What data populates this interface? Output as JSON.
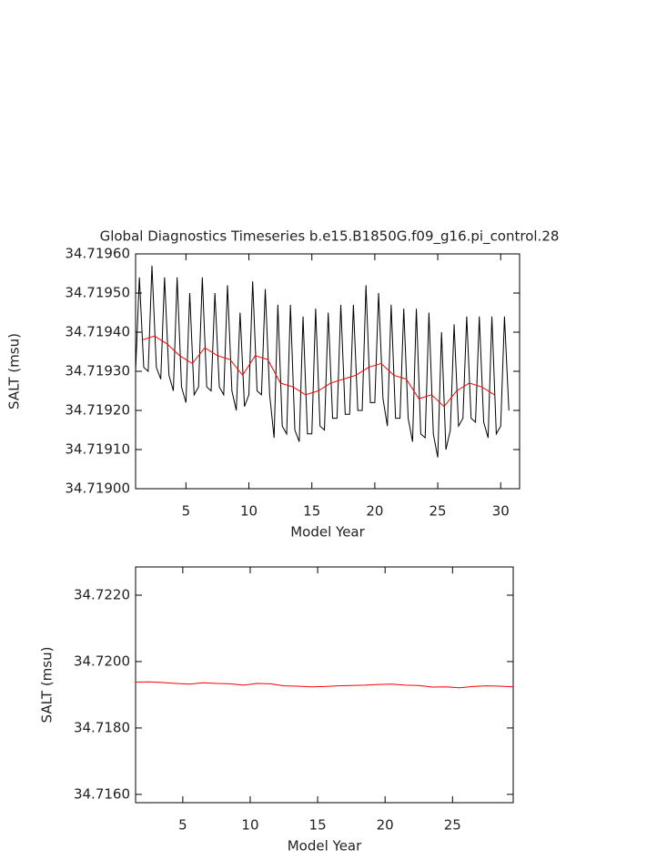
{
  "chart_data": [
    {
      "type": "line",
      "title": "Global Diagnostics Timeseries b.e15.B1850G.f09_g16.pi_control.28",
      "x_label": "Model Year",
      "y_label": "SALT (msu)",
      "xlim": [
        1,
        31.5
      ],
      "ylim": [
        34.719,
        34.7196
      ],
      "xticks": [
        5,
        10,
        15,
        20,
        25,
        30
      ],
      "yticks": [
        {
          "value": 34.719,
          "label": "34.71900"
        },
        {
          "value": 34.7191,
          "label": "34.71910"
        },
        {
          "value": 34.7192,
          "label": "34.71920"
        },
        {
          "value": 34.7193,
          "label": "34.71930"
        },
        {
          "value": 34.7194,
          "label": "34.71940"
        },
        {
          "value": 34.7195,
          "label": "34.71950"
        },
        {
          "value": 34.7196,
          "label": "34.71960"
        }
      ],
      "series": [
        {
          "color": "#000000",
          "x": [
            1,
            1.3,
            1.65,
            2,
            2.3,
            2.65,
            3,
            3.3,
            3.65,
            4,
            4.3,
            4.65,
            5,
            5.3,
            5.65,
            6,
            6.3,
            6.65,
            7,
            7.3,
            7.65,
            8,
            8.3,
            8.65,
            9,
            9.3,
            9.65,
            10,
            10.3,
            10.65,
            11,
            11.3,
            11.65,
            12,
            12.3,
            12.65,
            13,
            13.3,
            13.65,
            14,
            14.3,
            14.65,
            15,
            15.3,
            15.65,
            16,
            16.3,
            16.65,
            17,
            17.3,
            17.65,
            18,
            18.3,
            18.65,
            19,
            19.3,
            19.65,
            20,
            20.3,
            20.65,
            21,
            21.3,
            21.65,
            22,
            22.3,
            22.65,
            23,
            23.3,
            23.65,
            24,
            24.3,
            24.65,
            25,
            25.3,
            25.65,
            26,
            26.3,
            26.65,
            27,
            27.3,
            27.65,
            28,
            28.3,
            28.65,
            29,
            29.3,
            29.65,
            30,
            30.3,
            30.65
          ],
          "values": [
            34.7193,
            34.71954,
            34.71931,
            34.7193,
            34.71957,
            34.71931,
            34.71928,
            34.71954,
            34.71929,
            34.71925,
            34.71954,
            34.71926,
            34.71922,
            34.7195,
            34.71924,
            34.71926,
            34.71954,
            34.71926,
            34.71925,
            34.7195,
            34.71926,
            34.71924,
            34.71952,
            34.71925,
            34.7192,
            34.71945,
            34.71921,
            34.71924,
            34.71953,
            34.71925,
            34.71924,
            34.71951,
            34.71924,
            34.71913,
            34.71947,
            34.71916,
            34.71914,
            34.71947,
            34.71915,
            34.71912,
            34.71944,
            34.71914,
            34.71914,
            34.71946,
            34.71916,
            34.71915,
            34.71945,
            34.71918,
            34.71918,
            34.71947,
            34.71919,
            34.71919,
            34.71947,
            34.7192,
            34.7192,
            34.71952,
            34.71922,
            34.71922,
            34.7195,
            34.71923,
            34.71916,
            34.71947,
            34.71918,
            34.71918,
            34.71946,
            34.71918,
            34.71912,
            34.71946,
            34.71914,
            34.71913,
            34.71945,
            34.71914,
            34.71908,
            34.7194,
            34.7191,
            34.71915,
            34.71942,
            34.71916,
            34.71918,
            34.71944,
            34.71918,
            34.71917,
            34.71944,
            34.71917,
            34.71913,
            34.71944,
            34.71914,
            34.71916,
            34.71944,
            34.7192
          ]
        },
        {
          "color": "#ff0000",
          "x": [
            1.5,
            2.5,
            3.5,
            4.5,
            5.5,
            6.5,
            7.5,
            8.5,
            9.5,
            10.5,
            11.5,
            12.5,
            13.5,
            14.5,
            15.5,
            16.5,
            17.5,
            18.5,
            19.5,
            20.5,
            21.5,
            22.5,
            23.5,
            24.5,
            25.5,
            26.5,
            27.5,
            28.5,
            29.5
          ],
          "values": [
            34.71938,
            34.71939,
            34.71937,
            34.71934,
            34.71932,
            34.71936,
            34.71934,
            34.71933,
            34.71929,
            34.71934,
            34.71933,
            34.71927,
            34.71926,
            34.71924,
            34.71925,
            34.71927,
            34.71928,
            34.71929,
            34.71931,
            34.71932,
            34.71929,
            34.71928,
            34.71923,
            34.71924,
            34.71921,
            34.71925,
            34.71927,
            34.71926,
            34.71924
          ]
        }
      ]
    },
    {
      "type": "line",
      "x_label": "Model Year",
      "y_label": "SALT (msu)",
      "xlim": [
        1.5,
        29.5
      ],
      "ylim": [
        34.71575,
        34.72285
      ],
      "xticks": [
        5,
        10,
        15,
        20,
        25
      ],
      "yticks": [
        {
          "value": 34.716,
          "label": "34.7160"
        },
        {
          "value": 34.718,
          "label": "34.7180"
        },
        {
          "value": 34.72,
          "label": "34.7200"
        },
        {
          "value": 34.722,
          "label": "34.7220"
        }
      ],
      "series": [
        {
          "color": "#ff0000",
          "x": [
            1.5,
            2.5,
            3.5,
            4.5,
            5.5,
            6.5,
            7.5,
            8.5,
            9.5,
            10.5,
            11.5,
            12.5,
            13.5,
            14.5,
            15.5,
            16.5,
            17.5,
            18.5,
            19.5,
            20.5,
            21.5,
            22.5,
            23.5,
            24.5,
            25.5,
            26.5,
            27.5,
            28.5,
            29.5
          ],
          "values": [
            34.71938,
            34.71939,
            34.71937,
            34.71934,
            34.71932,
            34.71936,
            34.71934,
            34.71933,
            34.71929,
            34.71934,
            34.71933,
            34.71927,
            34.71926,
            34.71924,
            34.71925,
            34.71927,
            34.71928,
            34.71929,
            34.71931,
            34.71932,
            34.71929,
            34.71928,
            34.71923,
            34.71924,
            34.71921,
            34.71925,
            34.71927,
            34.71926,
            34.71924
          ]
        }
      ]
    }
  ]
}
